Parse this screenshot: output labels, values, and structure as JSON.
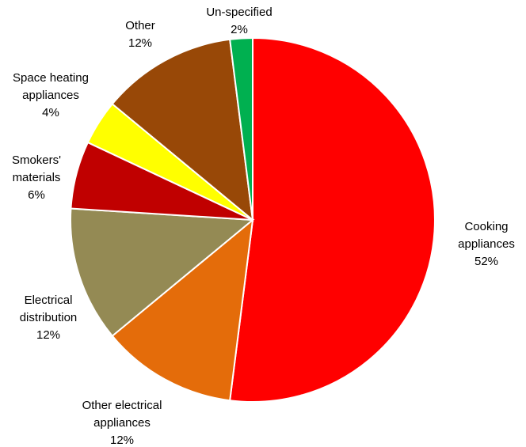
{
  "chart_data": {
    "type": "pie",
    "title": "",
    "slices": [
      {
        "label": "Cooking appliances",
        "label_lines": [
          "Cooking",
          "appliances"
        ],
        "value": 52,
        "value_label": "52%",
        "color": "#ff0000"
      },
      {
        "label": "Other electrical appliances",
        "label_lines": [
          "Other electrical",
          "appliances"
        ],
        "value": 12,
        "value_label": "12%",
        "color": "#e46c0a"
      },
      {
        "label": "Electrical distribution",
        "label_lines": [
          "Electrical",
          "distribution"
        ],
        "value": 12,
        "value_label": "12%",
        "color": "#948a54"
      },
      {
        "label": "Smokers' materials",
        "label_lines": [
          "Smokers'",
          "materials"
        ],
        "value": 6,
        "value_label": "6%",
        "color": "#c00000"
      },
      {
        "label": "Space heating appliances",
        "label_lines": [
          "Space heating",
          "appliances"
        ],
        "value": 4,
        "value_label": "4%",
        "color": "#ffff00"
      },
      {
        "label": "Other",
        "label_lines": [
          "Other"
        ],
        "value": 12,
        "value_label": "12%",
        "color": "#984807"
      },
      {
        "label": "Un-specified",
        "label_lines": [
          "Un-specified"
        ],
        "value": 2,
        "value_label": "2%",
        "color": "#00b050"
      }
    ],
    "legend": "none"
  }
}
